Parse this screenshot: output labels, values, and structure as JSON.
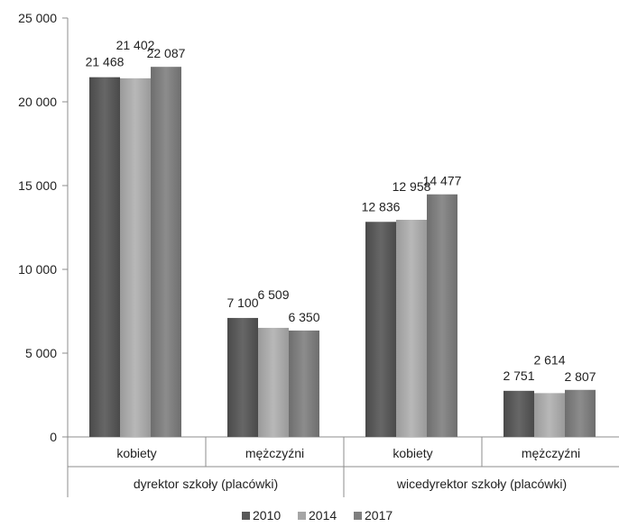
{
  "chart_data": {
    "type": "bar",
    "title": "",
    "xlabel": "",
    "ylabel": "",
    "ylim": [
      0,
      25000
    ],
    "yticks": [
      {
        "value": 0,
        "label": "0"
      },
      {
        "value": 5000,
        "label": "5 000"
      },
      {
        "value": 10000,
        "label": "10 000"
      },
      {
        "value": 15000,
        "label": "15 000"
      },
      {
        "value": 20000,
        "label": "20 000"
      },
      {
        "value": 25000,
        "label": "25 000"
      }
    ],
    "grid": false,
    "legend_position": "bottom",
    "groups": [
      {
        "label": "dyrektor szkoły (placówki)",
        "categories": [
          "kobiety",
          "mężczyźni"
        ]
      },
      {
        "label": "wicedyrektor szkoły (placówki)",
        "categories": [
          "kobiety",
          "mężczyźni"
        ]
      }
    ],
    "categories": [
      "kobiety",
      "mężczyźni",
      "kobiety",
      "mężczyźni"
    ],
    "series": [
      {
        "name": "2010",
        "color": "#595959",
        "values": [
          21468,
          7100,
          12836,
          2751
        ],
        "labels": [
          "21 468",
          "7 100",
          "12 836",
          "2 751"
        ]
      },
      {
        "name": "2014",
        "color": "#a6a6a6",
        "values": [
          21402,
          6509,
          12958,
          2614
        ],
        "labels": [
          "21 402",
          "6 509",
          "12 958",
          "2 614"
        ]
      },
      {
        "name": "2017",
        "color": "#7f7f7f",
        "values": [
          22087,
          6350,
          14477,
          2807
        ],
        "labels": [
          "22 087",
          "6 350",
          "14 477",
          "2 807"
        ]
      }
    ]
  }
}
